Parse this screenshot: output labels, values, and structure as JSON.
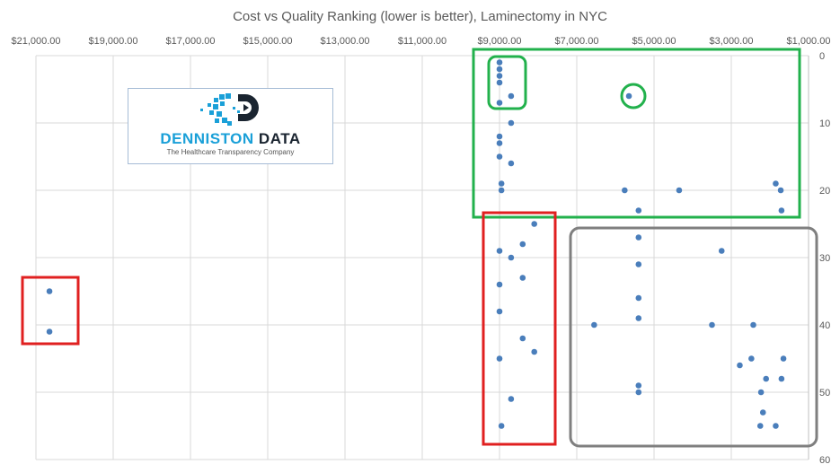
{
  "chart_data": {
    "type": "scatter",
    "title": "Cost vs Quality Ranking (lower is better), Laminectomy in NYC",
    "xlabel": "",
    "ylabel": "",
    "x_axis": {
      "reversed": true,
      "position": "top",
      "range": [
        1000,
        21000
      ],
      "ticks": [
        "$21,000.00",
        "$19,000.00",
        "$17,000.00",
        "$15,000.00",
        "$13,000.00",
        "$11,000.00",
        "$9,000.00",
        "$7,000.00",
        "$5,000.00",
        "$3,000.00",
        "$1,000.00"
      ],
      "tick_values": [
        21000,
        19000,
        17000,
        15000,
        13000,
        11000,
        9000,
        7000,
        5000,
        3000,
        1000
      ]
    },
    "y_axis": {
      "reversed": true,
      "position": "right",
      "range": [
        0,
        60
      ],
      "ticks": [
        "0",
        "10",
        "20",
        "30",
        "40",
        "50",
        "60"
      ],
      "tick_values": [
        0,
        10,
        20,
        30,
        40,
        50,
        60
      ]
    },
    "grid": true,
    "marker_color": "#4a7ebb",
    "points": [
      [
        20650,
        35
      ],
      [
        20650,
        41
      ],
      [
        9000,
        1
      ],
      [
        9000,
        2
      ],
      [
        9000,
        3
      ],
      [
        9000,
        4
      ],
      [
        9000,
        7
      ],
      [
        8700,
        6
      ],
      [
        8700,
        10
      ],
      [
        9000,
        12
      ],
      [
        9000,
        13
      ],
      [
        9000,
        15
      ],
      [
        8700,
        16
      ],
      [
        8950,
        19
      ],
      [
        8950,
        20
      ],
      [
        5650,
        6
      ],
      [
        5760,
        20
      ],
      [
        4350,
        20
      ],
      [
        1850,
        19
      ],
      [
        1720,
        20
      ],
      [
        1700,
        23
      ],
      [
        5400,
        23
      ],
      [
        8100,
        25
      ],
      [
        8400,
        28
      ],
      [
        9000,
        29
      ],
      [
        8700,
        30
      ],
      [
        8400,
        33
      ],
      [
        9000,
        34
      ],
      [
        9000,
        38
      ],
      [
        8400,
        42
      ],
      [
        8100,
        44
      ],
      [
        9000,
        45
      ],
      [
        8700,
        51
      ],
      [
        8950,
        55
      ],
      [
        5400,
        27
      ],
      [
        5400,
        31
      ],
      [
        5400,
        36
      ],
      [
        5400,
        39
      ],
      [
        6550,
        40
      ],
      [
        3250,
        29
      ],
      [
        3500,
        40
      ],
      [
        2430,
        40
      ],
      [
        2780,
        46
      ],
      [
        2480,
        45
      ],
      [
        1650,
        45
      ],
      [
        2100,
        48
      ],
      [
        1700,
        48
      ],
      [
        5400,
        49
      ],
      [
        5400,
        50
      ],
      [
        2230,
        50
      ],
      [
        2180,
        53
      ],
      [
        2250,
        55
      ],
      [
        1850,
        55
      ]
    ]
  },
  "annotations": {
    "green": "#22b14c",
    "red": "#e02020",
    "gray": "#7f7f7f"
  },
  "logo": {
    "name_part1": "DENNISTON",
    "name_part2": "DATA",
    "tagline": "The Healthcare Transparency Company"
  }
}
